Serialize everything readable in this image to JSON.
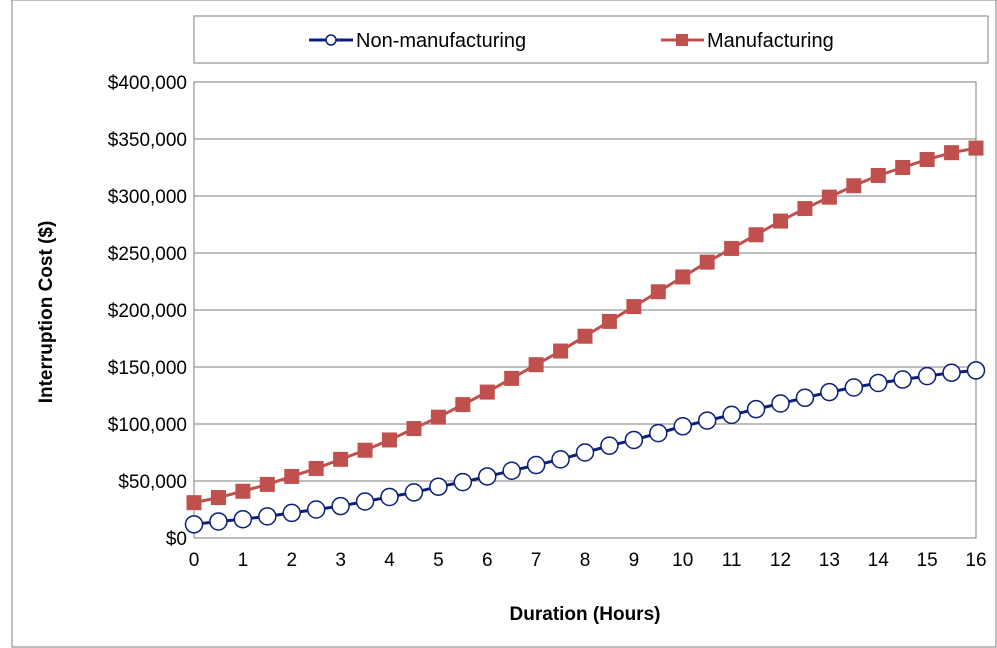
{
  "chart_data": {
    "type": "line",
    "title": "",
    "xlabel": "Duration (Hours)",
    "ylabel": "Interruption Cost ($)",
    "xlim": [
      0,
      16
    ],
    "ylim": [
      0,
      400000
    ],
    "grid": true,
    "legend": "top",
    "x_ticks": [
      "0",
      "1",
      "2",
      "3",
      "4",
      "5",
      "6",
      "7",
      "8",
      "9",
      "10",
      "11",
      "12",
      "13",
      "14",
      "15",
      "16"
    ],
    "y_ticks": [
      "$0",
      "$50,000",
      "$100,000",
      "$150,000",
      "$200,000",
      "$250,000",
      "$300,000",
      "$350,000",
      "$400,000"
    ],
    "x": [
      0,
      0.5,
      1,
      1.5,
      2,
      2.5,
      3,
      3.5,
      4,
      4.5,
      5,
      5.5,
      6,
      6.5,
      7,
      7.5,
      8,
      8.5,
      9,
      9.5,
      10,
      10.5,
      11,
      11.5,
      12,
      12.5,
      13,
      13.5,
      14,
      14.5,
      15,
      15.5,
      16
    ],
    "series": [
      {
        "name": "Non-manufacturing",
        "color": "#0d1f7a",
        "marker": "circle",
        "values": [
          12000,
          14500,
          16500,
          19000,
          22000,
          25000,
          28000,
          32000,
          36000,
          40000,
          45000,
          49000,
          54000,
          59000,
          64000,
          69000,
          75000,
          81000,
          86000,
          92000,
          98000,
          103000,
          108000,
          113000,
          118000,
          123000,
          128000,
          132000,
          136000,
          139000,
          142000,
          145000,
          147000
        ]
      },
      {
        "name": "Manufacturing",
        "color": "#c0504d",
        "marker": "square",
        "values": [
          31000,
          35500,
          41000,
          47000,
          54000,
          61000,
          69000,
          77000,
          86000,
          96000,
          106000,
          117000,
          128000,
          140000,
          152000,
          164000,
          177000,
          190000,
          203000,
          216000,
          229000,
          242000,
          254000,
          266000,
          278000,
          289000,
          299000,
          309000,
          318000,
          325000,
          332000,
          338000,
          342000
        ]
      }
    ]
  }
}
